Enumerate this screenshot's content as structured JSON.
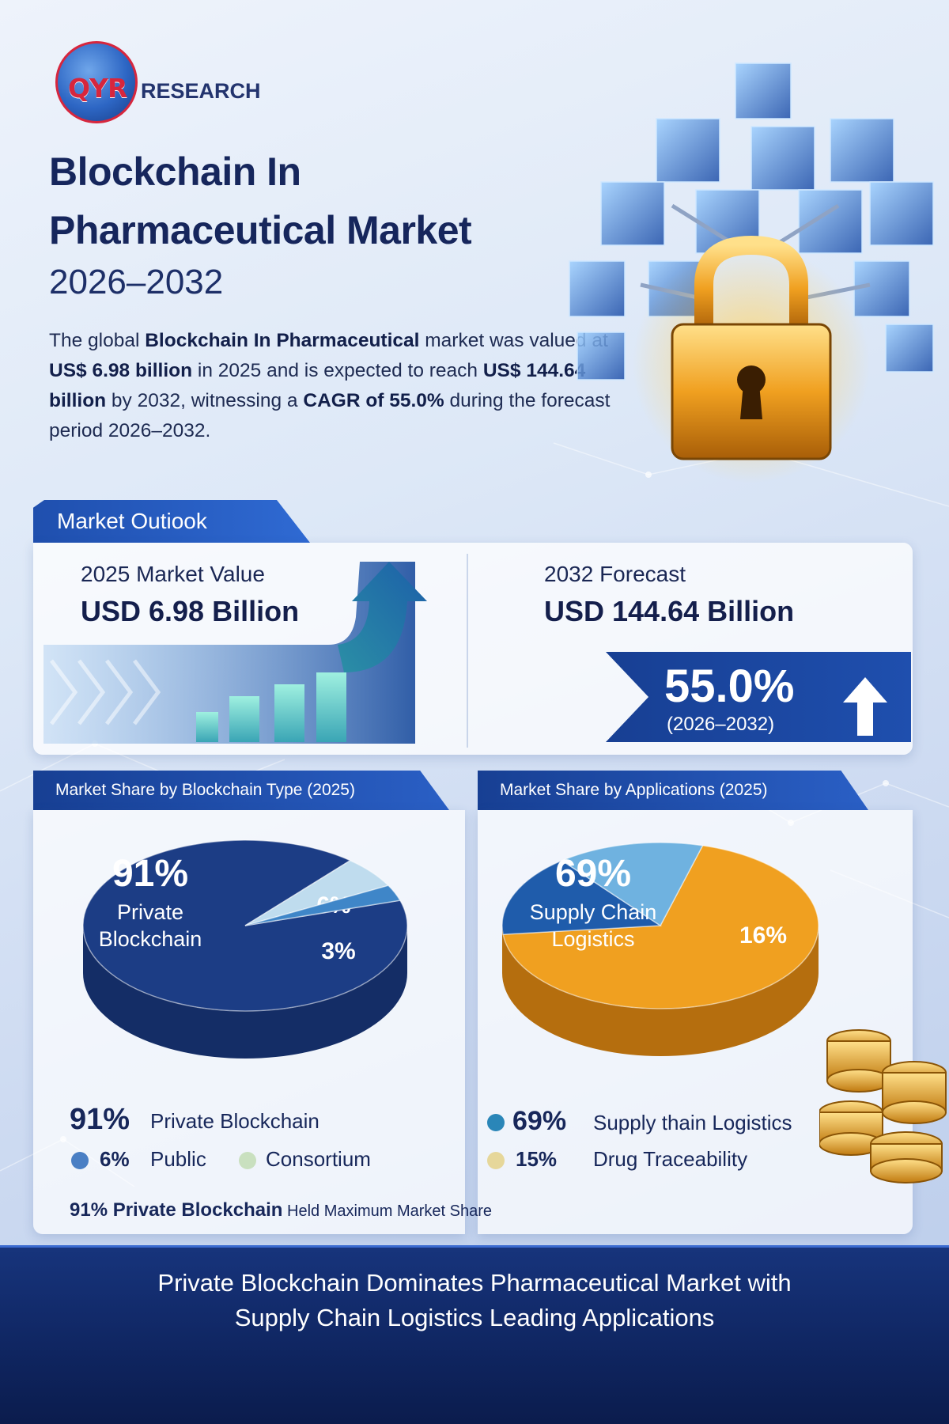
{
  "brand": {
    "logo_qyr": "QYR",
    "logo_research": "RESEARCH"
  },
  "header": {
    "title_line_1": "Blockchain In",
    "title_line_2": "Pharmaceutical Market",
    "years": "2026–2032"
  },
  "intro": {
    "t1": "The global ",
    "b1": "Blockchain In Pharmaceutical",
    "t2": " market was valued at ",
    "b2": "US$ 6.98 billion",
    "t3": " in 2025 and is expected to reach ",
    "b3": "US$ 144.64 billion",
    "t4": " by 2032, witnessing a ",
    "b4": "CAGR of 55.0%",
    "t5": " during the forecast period 2026–2032."
  },
  "outlook": {
    "tab_label": "Market Outiook",
    "market_value_label": "2025 Market Value",
    "market_value": "USD 6.98 Billion",
    "forecast_label": "2032 Forecast",
    "forecast_value": "USD 144.64 Billion",
    "cagr": "55.0%",
    "cagr_period": "(2026–2032)"
  },
  "colors": {
    "navy": "#16265c",
    "blue": "#1f4fae",
    "orange": "#f0a020",
    "teal": "#2a86b8",
    "light_blue": "#7fb2dc"
  },
  "chart_data": [
    {
      "type": "pie",
      "title": "Market Share by Blockchain Type (2025)",
      "slices": [
        {
          "label": "Private Blockchain",
          "value": 91,
          "display": "91%"
        },
        {
          "label": "",
          "value": 6,
          "display": "6%"
        },
        {
          "label": "",
          "value": 3,
          "display": "3%"
        }
      ],
      "center_label_value": "91%",
      "center_label_line_1": "Private",
      "center_label_line_2": "Blockchain",
      "legend": [
        {
          "value": "91%",
          "label": "Private Blockchain"
        },
        {
          "value": "6%",
          "label": "Public"
        },
        {
          "value": "",
          "label": "Consortium"
        }
      ],
      "note_value": "91% Private Blockchain",
      "note_text": " Held Maximum Market Share"
    },
    {
      "type": "pie",
      "title": "Market Share by Applications (2025)",
      "slices": [
        {
          "label": "Supply Chain Logistics",
          "value": 69,
          "display": "69%"
        },
        {
          "label": "",
          "value": 16,
          "display": "16%"
        },
        {
          "label": "",
          "value": 15,
          "display": ""
        }
      ],
      "center_label_value": "69%",
      "center_label_line_1": "Supply Chain",
      "center_label_line_2": "Logistics",
      "legend": [
        {
          "value": "69%",
          "label": "Supply thain Logistics"
        },
        {
          "value": "15%",
          "label": "Drug Traceability"
        }
      ]
    }
  ],
  "footer": {
    "line_1": "Private Blockchain Dominates Pharmaceutical Market with",
    "line_2": "Supply Chain Logistics Leading Applications"
  }
}
